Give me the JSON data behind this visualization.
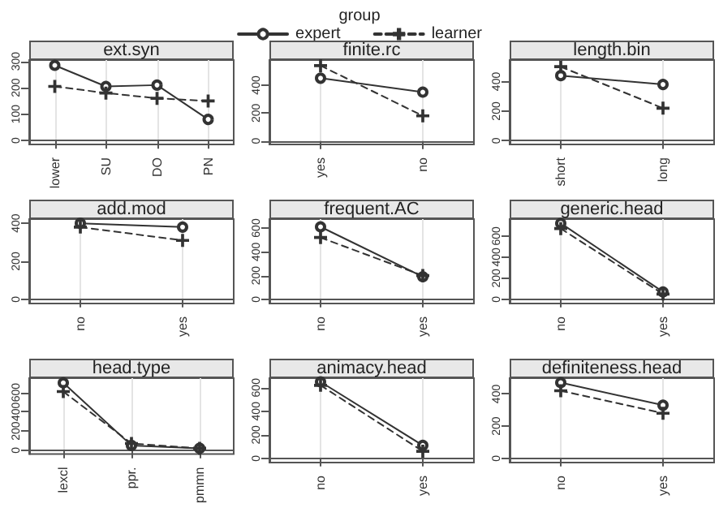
{
  "chart_data": [
    {
      "type": "line",
      "title": "ext.syn",
      "legend_title": "group",
      "legend": "top",
      "grid": "x",
      "categories": [
        "lower",
        "SU",
        "DO",
        "PN"
      ],
      "ylim": [
        -15,
        305
      ],
      "yticks": [
        0,
        100,
        200,
        300
      ],
      "series": [
        {
          "name": "expert",
          "color": "#333333",
          "marker": "circle",
          "line_style": "solid",
          "values": [
            285,
            205,
            210,
            80
          ]
        },
        {
          "name": "learner",
          "color": "#333333",
          "marker": "cross",
          "line_style": "dashed",
          "values": [
            205,
            180,
            160,
            150
          ]
        }
      ]
    },
    {
      "type": "line",
      "title": "finite.rc",
      "grid": "x",
      "categories": [
        "yes",
        "no"
      ],
      "ylim": [
        -25,
        580
      ],
      "yticks": [
        0,
        200,
        400
      ],
      "series": [
        {
          "color": "#333333",
          "marker": "circle",
          "line_style": "solid",
          "values": [
            450,
            350
          ]
        },
        {
          "color": "#333333",
          "marker": "cross",
          "line_style": "dashed",
          "values": [
            540,
            180
          ]
        }
      ]
    },
    {
      "type": "line",
      "title": "length.bin",
      "grid": "x",
      "categories": [
        "short",
        "long"
      ],
      "ylim": [
        -25,
        545
      ],
      "yticks": [
        0,
        200,
        400
      ],
      "series": [
        {
          "color": "#333333",
          "marker": "circle",
          "line_style": "solid",
          "values": [
            440,
            380
          ]
        },
        {
          "color": "#333333",
          "marker": "cross",
          "line_style": "dashed",
          "values": [
            500,
            220
          ]
        }
      ]
    },
    {
      "type": "line",
      "title": "add.mod",
      "grid": "x",
      "categories": [
        "no",
        "yes"
      ],
      "ylim": [
        -22,
        422
      ],
      "yticks": [
        0,
        200,
        400
      ],
      "series": [
        {
          "color": "#333333",
          "marker": "circle",
          "line_style": "solid",
          "values": [
            400,
            380
          ]
        },
        {
          "color": "#333333",
          "marker": "cross",
          "line_style": "dashed",
          "values": [
            380,
            310
          ]
        }
      ]
    },
    {
      "type": "line",
      "title": "frequent.AC",
      "grid": "x",
      "categories": [
        "no",
        "yes"
      ],
      "ylim": [
        -35,
        675
      ],
      "yticks": [
        0,
        200,
        400,
        600
      ],
      "series": [
        {
          "color": "#333333",
          "marker": "circle",
          "line_style": "solid",
          "values": [
            610,
            190
          ]
        },
        {
          "color": "#333333",
          "marker": "cross",
          "line_style": "dashed",
          "values": [
            520,
            200
          ]
        }
      ]
    },
    {
      "type": "line",
      "title": "generic.head",
      "grid": "x",
      "categories": [
        "no",
        "yes"
      ],
      "ylim": [
        -40,
        760
      ],
      "yticks": [
        0,
        200,
        400,
        600
      ],
      "series": [
        {
          "color": "#333333",
          "marker": "circle",
          "line_style": "solid",
          "values": [
            720,
            70
          ]
        },
        {
          "color": "#333333",
          "marker": "cross",
          "line_style": "dashed",
          "values": [
            670,
            50
          ]
        }
      ]
    },
    {
      "type": "line",
      "title": "head.type",
      "grid": "x",
      "categories": [
        "lexcl",
        "ppr.",
        "pmmn"
      ],
      "ylim": [
        -40,
        749
      ],
      "yticks": [
        0,
        200,
        400,
        600
      ],
      "series": [
        {
          "color": "#333333",
          "marker": "circle",
          "line_style": "solid",
          "values": [
            700,
            50,
            20
          ]
        },
        {
          "color": "#333333",
          "marker": "cross",
          "line_style": "dashed",
          "values": [
            610,
            70,
            20
          ]
        }
      ]
    },
    {
      "type": "line",
      "title": "animacy.head",
      "grid": "x",
      "categories": [
        "no",
        "yes"
      ],
      "ylim": [
        -36,
        681
      ],
      "yticks": [
        0,
        200,
        400,
        600
      ],
      "series": [
        {
          "color": "#333333",
          "marker": "circle",
          "line_style": "solid",
          "values": [
            650,
            110
          ]
        },
        {
          "color": "#333333",
          "marker": "cross",
          "line_style": "dashed",
          "values": [
            620,
            60
          ]
        }
      ]
    },
    {
      "type": "line",
      "title": "definiteness.head",
      "grid": "x",
      "categories": [
        "no",
        "yes"
      ],
      "ylim": [
        -26,
        498
      ],
      "yticks": [
        0,
        200,
        400
      ],
      "series": [
        {
          "color": "#333333",
          "marker": "circle",
          "line_style": "solid",
          "values": [
            470,
            330
          ]
        },
        {
          "color": "#333333",
          "marker": "cross",
          "line_style": "dashed",
          "values": [
            420,
            280
          ]
        }
      ]
    }
  ]
}
